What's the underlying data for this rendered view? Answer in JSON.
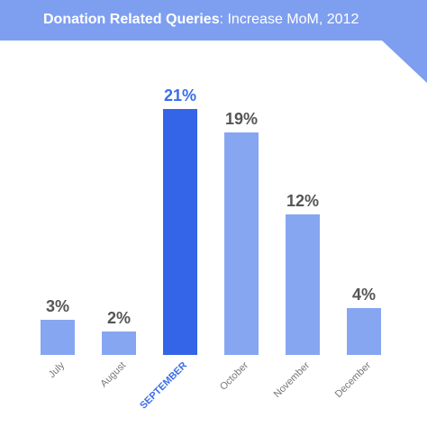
{
  "title": {
    "bold": "Donation Related Queries",
    "rest": ": Increase MoM, 2012"
  },
  "colors": {
    "banner": "#7e9ff0",
    "bar": "#86a6f1",
    "highlight_bar": "#3465e8",
    "highlight_text": "#3a6ee8",
    "value_text": "#555555",
    "label_text": "#777777"
  },
  "chart_data": {
    "type": "bar",
    "title": "Donation Related Queries: Increase MoM, 2012",
    "categories": [
      "July",
      "August",
      "SEPTEMBER",
      "October",
      "November",
      "December"
    ],
    "values": [
      3,
      2,
      21,
      19,
      12,
      4
    ],
    "value_labels": [
      "3%",
      "2%",
      "21%",
      "19%",
      "12%",
      "4%"
    ],
    "highlight_index": 2,
    "xlabel": "",
    "ylabel": "",
    "ylim": [
      0,
      22
    ],
    "grid": false,
    "legend": "none"
  }
}
